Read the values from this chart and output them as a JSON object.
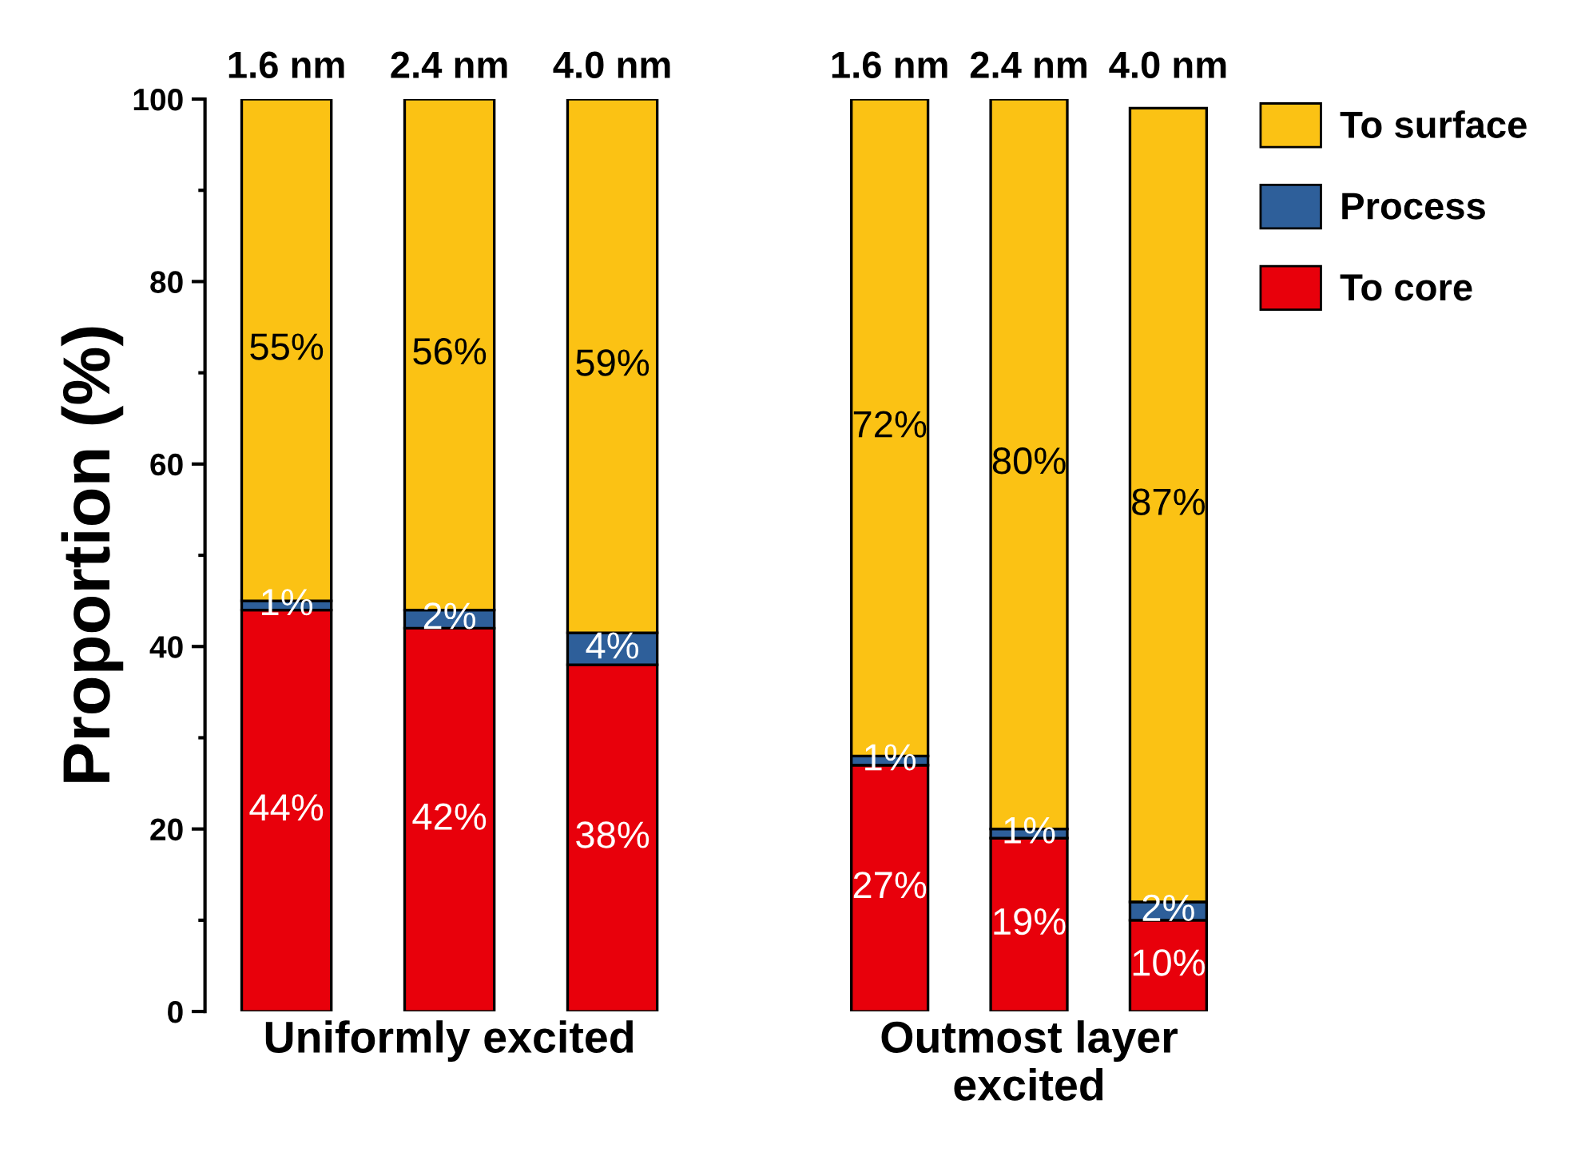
{
  "chart_data": [
    {
      "type": "bar",
      "stacked": true,
      "categories": [
        "1.6 nm",
        "2.4 nm",
        "4.0 nm"
      ],
      "xlabel": "Uniformly excited",
      "ylabel": "Proportion (%)",
      "ylim": [
        0,
        100
      ],
      "yticks": [
        0,
        20,
        40,
        60,
        80,
        100
      ],
      "grid": false,
      "legend": false,
      "series": [
        {
          "color": "#e8000b",
          "values": [
            44,
            42,
            38
          ],
          "value_labels": [
            "44%",
            "42%",
            "38%"
          ]
        },
        {
          "color": "#2e5f9a",
          "values": [
            1,
            2,
            3.5
          ],
          "value_labels": [
            "1%",
            "2%",
            "4%"
          ]
        },
        {
          "color": "#fbc214",
          "values": [
            55,
            56,
            58.5
          ],
          "value_labels": [
            "55%",
            "56%",
            "59%"
          ]
        }
      ]
    },
    {
      "type": "bar",
      "stacked": true,
      "categories": [
        "1.6 nm",
        "2.4 nm",
        "4.0 nm"
      ],
      "xlabel": "Outmost layer\nexcited",
      "ylim": [
        0,
        100
      ],
      "tick_labels": "x",
      "grid": false,
      "legend": "right",
      "series": [
        {
          "name": "To core",
          "color": "#e8000b",
          "values": [
            27,
            19,
            10
          ],
          "value_labels": [
            "27%",
            "19%",
            "10%"
          ]
        },
        {
          "name": "Process",
          "color": "#2e5f9a",
          "values": [
            1,
            1,
            2
          ],
          "value_labels": [
            "1%",
            "1%",
            "2%"
          ]
        },
        {
          "name": "To surface",
          "color": "#fbc214",
          "values": [
            72,
            80,
            87
          ],
          "value_labels": [
            "72%",
            "80%",
            "87%"
          ]
        }
      ]
    }
  ]
}
